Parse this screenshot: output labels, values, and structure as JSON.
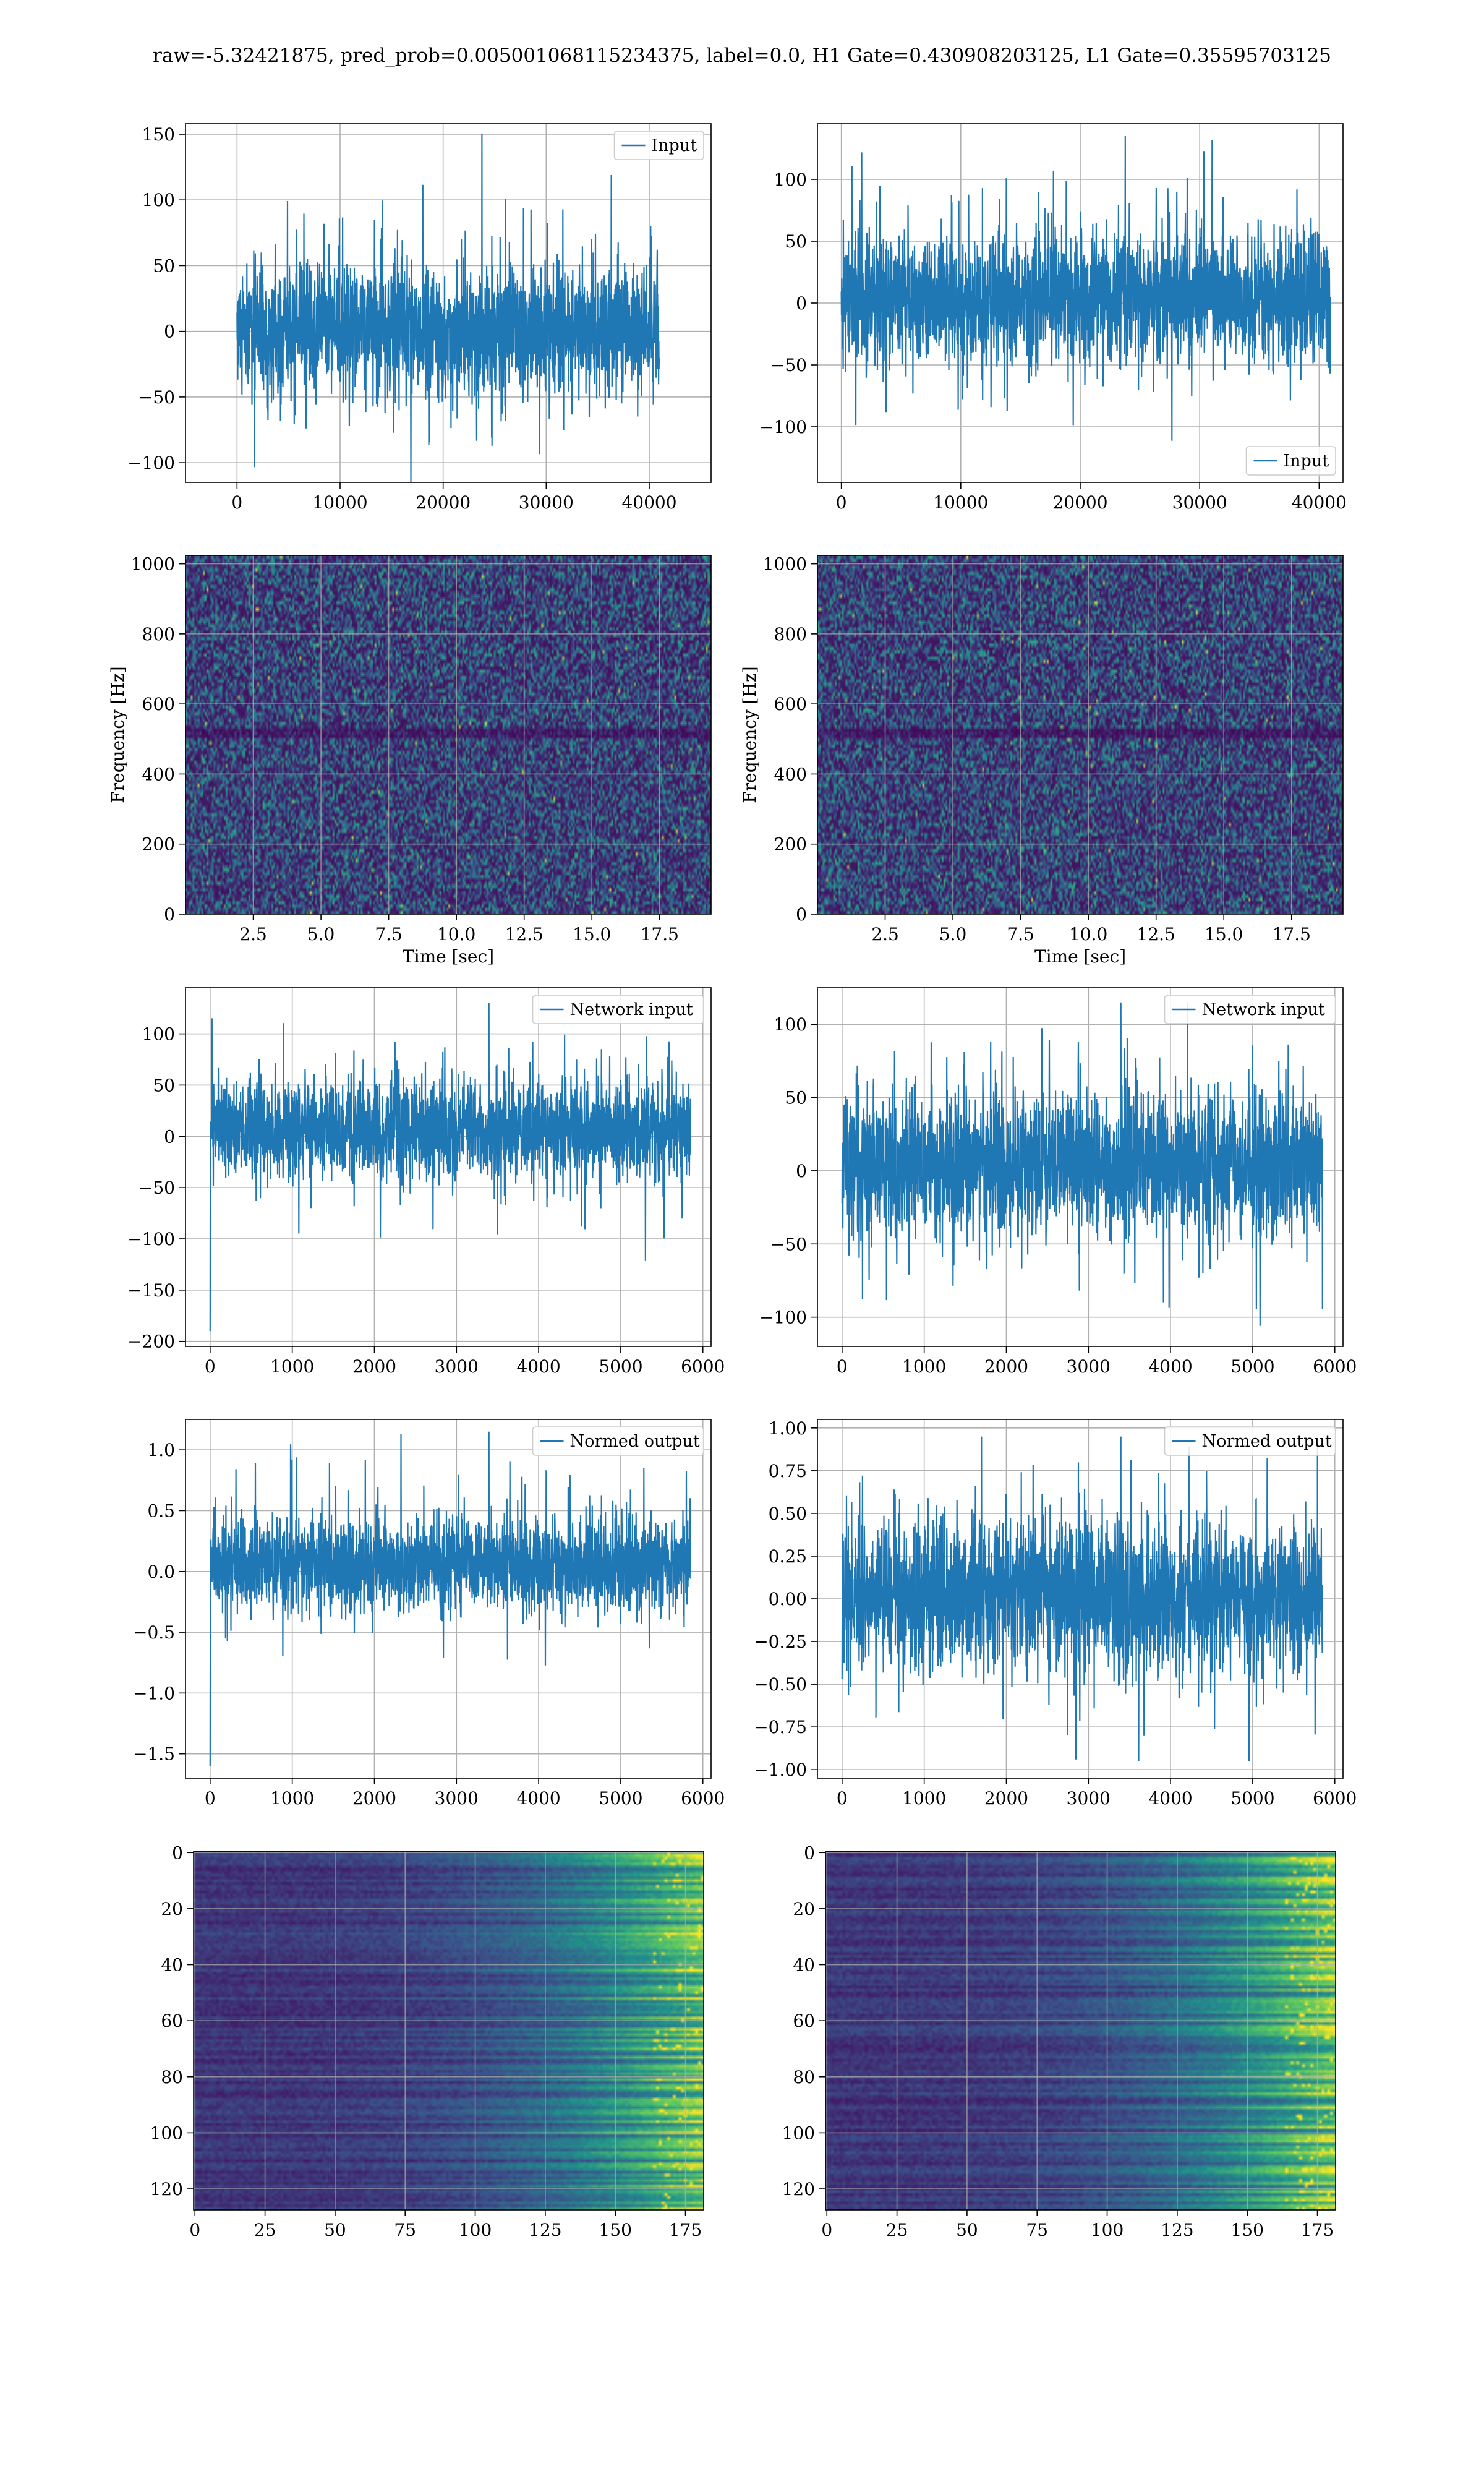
{
  "figure": {
    "suptitle": "raw=-5.32421875, pred_prob=0.005001068115234375, label=0.0, H1 Gate=0.430908203125, L1 Gate=0.35595703125"
  },
  "colors": {
    "line": "#1f77b4",
    "grid": "#b0b0b0",
    "viridis_dark": "#440154",
    "viridis_mid": "#21918c",
    "viridis_bright": "#fde725"
  },
  "chart_data": [
    {
      "id": "input_h1",
      "type": "line",
      "style": "dense-noise",
      "xlim": [
        -5000,
        46000
      ],
      "ylim": [
        -115,
        158
      ],
      "xticks": [
        0,
        10000,
        20000,
        30000,
        40000
      ],
      "yticks": [
        -100,
        -50,
        0,
        50,
        100,
        150
      ],
      "grid": true,
      "legend": {
        "entries": [
          "Input"
        ],
        "placement": "top-right"
      },
      "x_range": [
        0,
        40960
      ],
      "envelope": {
        "typical": [
          -60,
          65
        ],
        "extremes": [
          -115,
          150
        ]
      },
      "xlabel": "",
      "ylabel": ""
    },
    {
      "id": "input_l1",
      "type": "line",
      "style": "dense-noise",
      "xlim": [
        -2000,
        42000
      ],
      "ylim": [
        -145,
        145
      ],
      "xticks": [
        0,
        10000,
        20000,
        30000,
        40000
      ],
      "yticks": [
        -100,
        -50,
        0,
        50,
        100
      ],
      "grid": true,
      "legend": {
        "entries": [
          "Input"
        ],
        "placement": "bottom-right"
      },
      "x_range": [
        0,
        40960
      ],
      "envelope": {
        "typical": [
          -65,
          75
        ],
        "extremes": [
          -125,
          135
        ]
      },
      "xlabel": "",
      "ylabel": ""
    },
    {
      "id": "spectrogram_h1",
      "type": "heatmap",
      "xlim": [
        0,
        19.4
      ],
      "ylim": [
        0,
        1024
      ],
      "xticks": [
        2.5,
        5.0,
        7.5,
        10.0,
        12.5,
        15.0,
        17.5
      ],
      "xticklabels": [
        "2.5",
        "5.0",
        "7.5",
        "10.0",
        "12.5",
        "15.0",
        "17.5"
      ],
      "yticks": [
        0,
        200,
        400,
        600,
        800,
        1000
      ],
      "grid": true,
      "colormap": "viridis",
      "xlabel": "Time [sec]",
      "ylabel": "Frequency [Hz]"
    },
    {
      "id": "spectrogram_l1",
      "type": "heatmap",
      "xlim": [
        0,
        19.4
      ],
      "ylim": [
        0,
        1024
      ],
      "xticks": [
        2.5,
        5.0,
        7.5,
        10.0,
        12.5,
        15.0,
        17.5
      ],
      "xticklabels": [
        "2.5",
        "5.0",
        "7.5",
        "10.0",
        "12.5",
        "15.0",
        "17.5"
      ],
      "yticks": [
        0,
        200,
        400,
        600,
        800,
        1000
      ],
      "grid": true,
      "colormap": "viridis",
      "xlabel": "Time [sec]",
      "ylabel": "Frequency [Hz]"
    },
    {
      "id": "network_input_h1",
      "type": "line",
      "style": "dense-noise",
      "xlim": [
        -300,
        6100
      ],
      "ylim": [
        -205,
        145
      ],
      "xticks": [
        0,
        1000,
        2000,
        3000,
        4000,
        5000,
        6000
      ],
      "yticks": [
        -200,
        -150,
        -100,
        -50,
        0,
        50,
        100
      ],
      "grid": true,
      "legend": {
        "entries": [
          "Network input"
        ],
        "placement": "top-right"
      },
      "x_range": [
        0,
        5850
      ],
      "envelope": {
        "typical": [
          -55,
          70
        ],
        "extremes": [
          -190,
          130
        ]
      },
      "xlabel": "",
      "ylabel": ""
    },
    {
      "id": "network_input_l1",
      "type": "line",
      "style": "dense-noise",
      "xlim": [
        -300,
        6100
      ],
      "ylim": [
        -120,
        125
      ],
      "xticks": [
        0,
        1000,
        2000,
        3000,
        4000,
        5000,
        6000
      ],
      "yticks": [
        -100,
        -50,
        0,
        50,
        100
      ],
      "grid": true,
      "legend": {
        "entries": [
          "Network input"
        ],
        "placement": "top-right"
      },
      "x_range": [
        0,
        5850
      ],
      "envelope": {
        "typical": [
          -60,
          70
        ],
        "extremes": [
          -110,
          115
        ]
      },
      "xlabel": "",
      "ylabel": ""
    },
    {
      "id": "normed_output_h1",
      "type": "line",
      "style": "dense-noise",
      "xlim": [
        -300,
        6100
      ],
      "ylim": [
        -1.7,
        1.25
      ],
      "xticks": [
        0,
        1000,
        2000,
        3000,
        4000,
        5000,
        6000
      ],
      "yticks": [
        -1.5,
        -1.0,
        -0.5,
        0.0,
        0.5,
        1.0
      ],
      "yticklabels": [
        "−1.5",
        "−1.0",
        "−0.5",
        "0.0",
        "0.5",
        "1.0"
      ],
      "grid": true,
      "legend": {
        "entries": [
          "Normed output"
        ],
        "placement": "top-right"
      },
      "x_range": [
        0,
        5850
      ],
      "envelope": {
        "typical": [
          -0.45,
          0.55
        ],
        "extremes": [
          -1.6,
          1.15
        ]
      },
      "xlabel": "",
      "ylabel": ""
    },
    {
      "id": "normed_output_l1",
      "type": "line",
      "style": "dense-noise",
      "xlim": [
        -300,
        6100
      ],
      "ylim": [
        -1.05,
        1.05
      ],
      "xticks": [
        0,
        1000,
        2000,
        3000,
        4000,
        5000,
        6000
      ],
      "yticks": [
        -1.0,
        -0.75,
        -0.5,
        -0.25,
        0.0,
        0.25,
        0.5,
        0.75,
        1.0
      ],
      "yticklabels": [
        "−1.00",
        "−0.75",
        "−0.50",
        "−0.25",
        "0.00",
        "0.25",
        "0.50",
        "0.75",
        "1.00"
      ],
      "grid": true,
      "legend": {
        "entries": [
          "Normed output"
        ],
        "placement": "top-right"
      },
      "x_range": [
        0,
        5850
      ],
      "envelope": {
        "typical": [
          -0.55,
          0.6
        ],
        "extremes": [
          -0.95,
          0.95
        ]
      },
      "xlabel": "",
      "ylabel": ""
    },
    {
      "id": "feature_map_h1",
      "type": "heatmap",
      "xlim": [
        -0.5,
        181.5
      ],
      "ylim": [
        127.5,
        -0.5
      ],
      "xticks": [
        0,
        25,
        50,
        75,
        100,
        125,
        150,
        175
      ],
      "yticks": [
        0,
        20,
        40,
        60,
        80,
        100,
        120
      ],
      "grid": true,
      "colormap": "viridis",
      "shape": [
        128,
        182
      ],
      "xlabel": "",
      "ylabel": ""
    },
    {
      "id": "feature_map_l1",
      "type": "heatmap",
      "xlim": [
        -0.5,
        181.5
      ],
      "ylim": [
        127.5,
        -0.5
      ],
      "xticks": [
        0,
        25,
        50,
        75,
        100,
        125,
        150,
        175
      ],
      "yticks": [
        0,
        20,
        40,
        60,
        80,
        100,
        120
      ],
      "grid": true,
      "colormap": "viridis",
      "shape": [
        128,
        182
      ],
      "xlabel": "",
      "ylabel": ""
    }
  ]
}
